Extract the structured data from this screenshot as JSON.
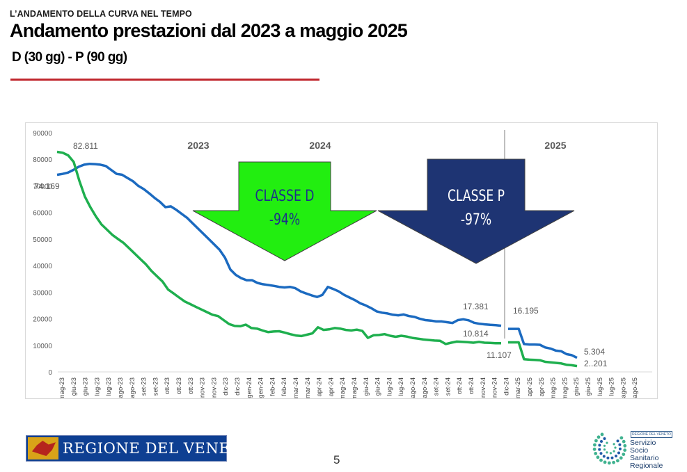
{
  "header": {
    "kicker": "L’ANDAMENTO DELLA CURVA NEL TEMPO",
    "title": "Andamento prestazioni dal 2023 a maggio 2025",
    "subtitle": "D (30 gg) - P (90 gg)"
  },
  "footer": {
    "page_number": "5",
    "left_logo_text": "REGIONE DEL VENETO",
    "right_logo_tag": "REGIONE DEL VENETO",
    "right_logo_lines": [
      "Servizio",
      "Socio Sanitario",
      "Regionale"
    ]
  },
  "chart_data": {
    "type": "line",
    "ylim": [
      0,
      90000
    ],
    "yticks": [
      "0",
      "10000",
      "20000",
      "30000",
      "40000",
      "50000",
      "60000",
      "70000",
      "80000",
      "90000"
    ],
    "x_labels": [
      "mag-23",
      "giu-23",
      "giu-23",
      "lug-23",
      "lug-23",
      "ago-23",
      "ago-23",
      "set-23",
      "set-23",
      "ott-23",
      "ott-23",
      "ott-23",
      "nov-23",
      "nov-23",
      "dic-23",
      "dic-23",
      "gen-24",
      "gen-24",
      "feb-24",
      "feb-24",
      "mar-24",
      "mar-24",
      "apr-24",
      "apr-24",
      "mag-24",
      "mag-24",
      "giu-24",
      "giu-24",
      "lug-24",
      "lug-24",
      "ago-24",
      "ago-24",
      "set-24",
      "set-24",
      "ott-24",
      "ott-24",
      "nov-24",
      "nov-24",
      "dic-24",
      "mar-25",
      "apr-25",
      "apr-25",
      "mag-25",
      "mag-25",
      "giu-25",
      "giu-25",
      "lug-25",
      "lug-25",
      "ago-25",
      "ago-25"
    ],
    "year_labels": [
      "2023",
      "2024",
      "2025"
    ],
    "arrows": [
      {
        "label_line1": "CLASSE D",
        "label_line2": "-94%",
        "fill": "#22ee10",
        "text_color": "#1c2f8a"
      },
      {
        "label_line1": "CLASSE P",
        "label_line2": "-97%",
        "fill": "#1e3473",
        "text_color": "#ffffff"
      }
    ],
    "series": [
      {
        "color": "#1b6ac0",
        "values": [
          [
            74169,
            74500,
            75000,
            76000,
            77200,
            78000,
            78300,
            78200,
            78000,
            77500,
            76000,
            74500,
            74200,
            73000,
            71800,
            70000,
            68800,
            67200,
            65500,
            64000,
            62000,
            62300,
            61000,
            59500,
            58000,
            56000,
            54000,
            52000,
            50000,
            48000,
            46000,
            43000,
            38500,
            36500,
            35300,
            34500,
            34500,
            33500,
            33000,
            32700,
            32400,
            32000,
            31800,
            32000,
            31500,
            30300,
            29500,
            28800,
            28200,
            29000,
            32000,
            31200,
            30300,
            29000,
            28000,
            27000,
            25800,
            25000,
            24000,
            22800,
            22300,
            22000,
            21500,
            21300,
            21600,
            21000,
            20700,
            20000,
            19500,
            19300,
            19000,
            19000,
            18700,
            18400,
            19500,
            19800,
            19400,
            18500,
            18100,
            17900,
            17700,
            17600,
            17381
          ],
          [
            16195,
            16195,
            16195,
            10500,
            10300,
            10300,
            10200,
            9200,
            8800,
            8000,
            7800,
            6700,
            6300,
            5304
          ]
        ]
      },
      {
        "color": "#1eaf4e",
        "values": [
          [
            82811,
            82500,
            81500,
            79000,
            72000,
            66000,
            62000,
            58500,
            55500,
            53500,
            51500,
            50000,
            48500,
            46500,
            44500,
            42500,
            40500,
            38000,
            36000,
            34000,
            31000,
            29500,
            28000,
            26500,
            25500,
            24500,
            23500,
            22500,
            21500,
            21000,
            19500,
            18000,
            17300,
            17200,
            17800,
            16500,
            16300,
            15600,
            15000,
            15200,
            15300,
            14800,
            14200,
            13700,
            13500,
            14000,
            14500,
            16800,
            15800,
            16000,
            16500,
            16300,
            15800,
            15600,
            15900,
            15400,
            12800,
            13800,
            13900,
            14200,
            13600,
            13200,
            13600,
            13300,
            12800,
            12500,
            12200,
            12000,
            11800,
            11700,
            10500,
            11000,
            11400,
            11300,
            11200,
            11000,
            11300,
            11000,
            10900,
            10800,
            10814
          ],
          [
            11107,
            11107,
            11107,
            4800,
            4600,
            4500,
            4400,
            3800,
            3600,
            3400,
            3200,
            2700,
            2500,
            2201
          ]
        ]
      }
    ],
    "data_labels": [
      "82.811",
      "74.169",
      "17.381",
      "10.814",
      "16.195",
      "11.107",
      "5.304",
      "2..201"
    ]
  }
}
